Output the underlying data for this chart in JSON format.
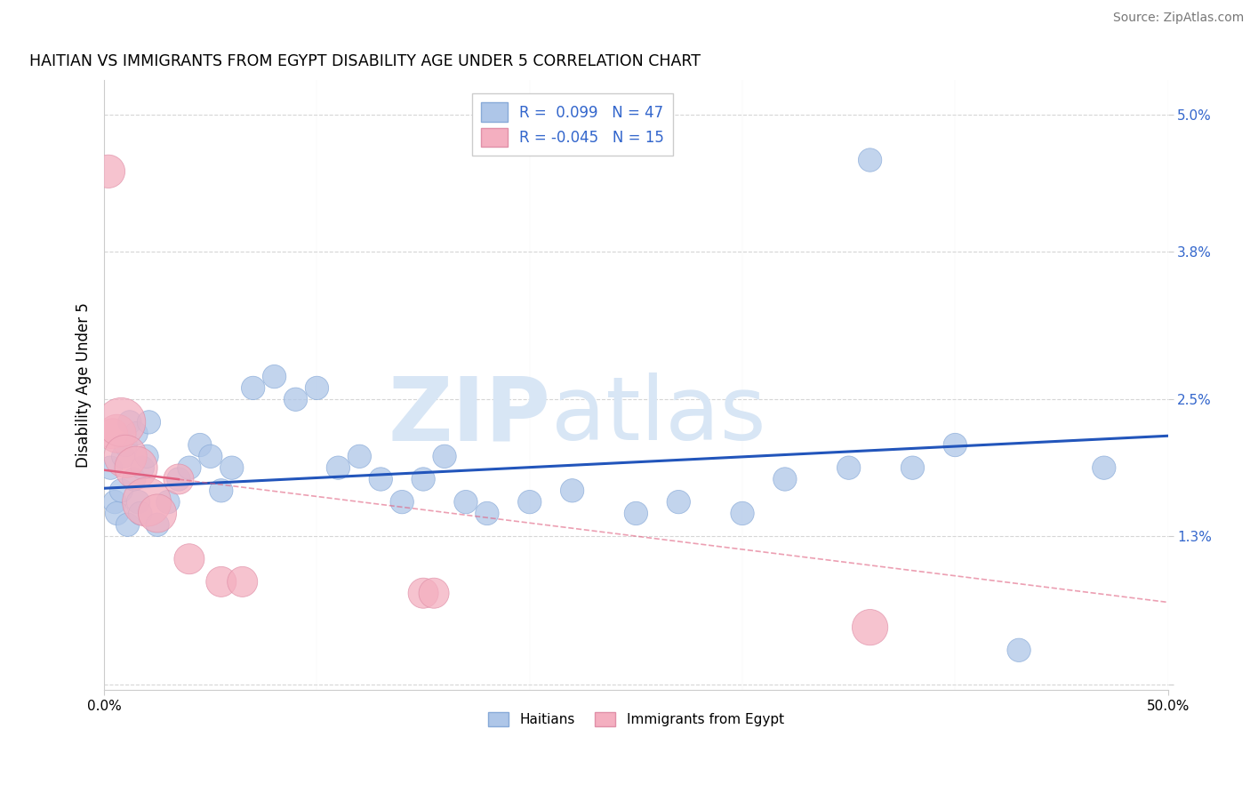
{
  "title": "HAITIAN VS IMMIGRANTS FROM EGYPT DISABILITY AGE UNDER 5 CORRELATION CHART",
  "source": "Source: ZipAtlas.com",
  "ylabel": "Disability Age Under 5",
  "legend_label1": "Haitians",
  "legend_label2": "Immigrants from Egypt",
  "r1": 0.099,
  "n1": 47,
  "r2": -0.045,
  "n2": 15,
  "color_blue": "#aec6e8",
  "color_pink": "#f4afc0",
  "line_blue": "#2255bb",
  "line_pink": "#e06080",
  "background": "#ffffff",
  "grid_color": "#cccccc",
  "xlim": [
    0.0,
    50.0
  ],
  "ylim": [
    -0.05,
    5.3
  ],
  "ytick_vals": [
    0.0,
    1.3,
    2.5,
    3.8,
    5.0
  ],
  "ytick_labels": [
    "",
    "1.3%",
    "2.5%",
    "3.8%",
    "5.0%"
  ],
  "blue_points": [
    [
      0.3,
      1.9
    ],
    [
      0.5,
      1.6
    ],
    [
      0.6,
      1.5
    ],
    [
      0.8,
      1.7
    ],
    [
      0.9,
      2.0
    ],
    [
      1.0,
      2.1
    ],
    [
      1.1,
      1.4
    ],
    [
      1.2,
      2.3
    ],
    [
      1.4,
      1.8
    ],
    [
      1.5,
      2.2
    ],
    [
      1.6,
      1.6
    ],
    [
      1.7,
      1.5
    ],
    [
      1.8,
      1.9
    ],
    [
      2.0,
      2.0
    ],
    [
      2.1,
      2.3
    ],
    [
      2.5,
      1.4
    ],
    [
      3.0,
      1.6
    ],
    [
      3.5,
      1.8
    ],
    [
      4.0,
      1.9
    ],
    [
      4.5,
      2.1
    ],
    [
      5.0,
      2.0
    ],
    [
      5.5,
      1.7
    ],
    [
      6.0,
      1.9
    ],
    [
      7.0,
      2.6
    ],
    [
      8.0,
      2.7
    ],
    [
      9.0,
      2.5
    ],
    [
      10.0,
      2.6
    ],
    [
      11.0,
      1.9
    ],
    [
      12.0,
      2.0
    ],
    [
      13.0,
      1.8
    ],
    [
      14.0,
      1.6
    ],
    [
      15.0,
      1.8
    ],
    [
      16.0,
      2.0
    ],
    [
      17.0,
      1.6
    ],
    [
      18.0,
      1.5
    ],
    [
      20.0,
      1.6
    ],
    [
      22.0,
      1.7
    ],
    [
      25.0,
      1.5
    ],
    [
      27.0,
      1.6
    ],
    [
      30.0,
      1.5
    ],
    [
      32.0,
      1.8
    ],
    [
      35.0,
      1.9
    ],
    [
      36.0,
      4.6
    ],
    [
      38.0,
      1.9
    ],
    [
      40.0,
      2.1
    ],
    [
      43.0,
      0.3
    ],
    [
      47.0,
      1.9
    ]
  ],
  "pink_points": [
    [
      0.2,
      4.5
    ],
    [
      0.4,
      2.2
    ],
    [
      0.6,
      2.2
    ],
    [
      0.8,
      2.3
    ],
    [
      1.0,
      2.0
    ],
    [
      1.5,
      1.9
    ],
    [
      2.0,
      1.6
    ],
    [
      2.5,
      1.5
    ],
    [
      3.5,
      1.8
    ],
    [
      4.0,
      1.1
    ],
    [
      5.5,
      0.9
    ],
    [
      6.5,
      0.9
    ],
    [
      15.0,
      0.8
    ],
    [
      15.5,
      0.8
    ],
    [
      36.0,
      0.5
    ]
  ],
  "blue_sizes_raw": [
    30,
    30,
    30,
    30,
    30,
    30,
    30,
    30,
    30,
    30,
    30,
    30,
    30,
    30,
    30,
    30,
    30,
    30,
    30,
    30,
    30,
    30,
    30,
    30,
    30,
    30,
    30,
    30,
    30,
    30,
    30,
    30,
    30,
    30,
    30,
    30,
    30,
    30,
    30,
    30,
    30,
    30,
    30,
    30,
    30,
    30,
    30
  ],
  "pink_sizes_raw": [
    60,
    50,
    80,
    130,
    100,
    100,
    130,
    80,
    50,
    50,
    50,
    50,
    50,
    50,
    70
  ],
  "blue_trend": [
    1.72,
    2.18
  ],
  "pink_trend_solid": [
    1.88,
    1.72
  ],
  "pink_trend_dash": [
    1.72,
    0.72
  ],
  "pink_solid_xrange": [
    0,
    3.5
  ],
  "pink_dash_xrange": [
    3.5,
    50
  ],
  "watermark_zip": "ZIP",
  "watermark_atlas": "atlas",
  "watermark_color": "#d8e6f5"
}
